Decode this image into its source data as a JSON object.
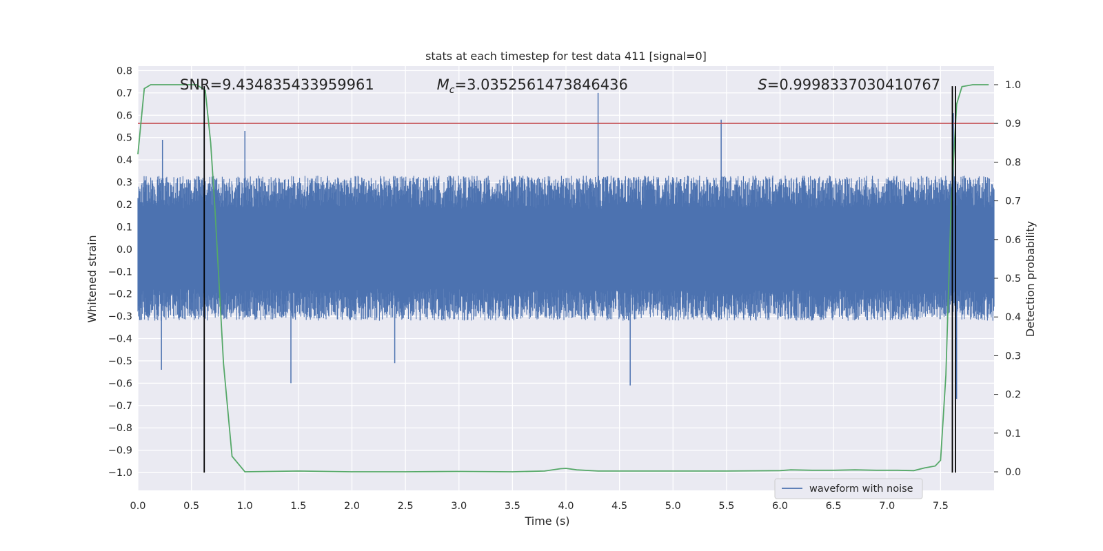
{
  "chart_data": {
    "type": "line",
    "title": "stats at each timestep for test data 411 [signal=0]",
    "xlabel": "Time (s)",
    "ylabel": "Whitened strain",
    "y2label": "Detection probability",
    "xlim": [
      0.0,
      8.0
    ],
    "ylim": [
      -1.08,
      0.82
    ],
    "y2lim": [
      -0.048,
      1.048
    ],
    "x_ticks": [
      "0.0",
      "0.5",
      "1.0",
      "1.5",
      "2.0",
      "2.5",
      "3.0",
      "3.5",
      "4.0",
      "4.5",
      "5.0",
      "5.5",
      "6.0",
      "6.5",
      "7.0",
      "7.5"
    ],
    "y_ticks": [
      "0.8",
      "0.7",
      "0.6",
      "0.5",
      "0.4",
      "0.3",
      "0.2",
      "0.1",
      "0.0",
      "−0.1",
      "−0.2",
      "−0.3",
      "−0.4",
      "−0.5",
      "−0.6",
      "−0.7",
      "−0.8",
      "−0.9",
      "−1.0"
    ],
    "y2_ticks": [
      "1.0",
      "0.9",
      "0.8",
      "0.7",
      "0.6",
      "0.5",
      "0.4",
      "0.3",
      "0.2",
      "0.1",
      "0.0"
    ],
    "grid": true,
    "legend_placement": "lower-right",
    "annotations": [
      {
        "text": "SNR=9.434835433959961",
        "x": 0.2,
        "y": 0.74
      },
      {
        "math": "M",
        "sub": "c",
        "text": "=3.0352561473846436",
        "x": 2.6,
        "y": 0.74
      },
      {
        "math": "S",
        "text": "=0.9998337030410767",
        "x": 5.6,
        "y": 0.74
      }
    ],
    "series": [
      {
        "name": "waveform with noise",
        "style": "noise-band",
        "axis": "left",
        "color": "#4c72b0",
        "x_range": [
          0.0,
          8.0
        ],
        "typical_envelope": [
          -0.32,
          0.33
        ],
        "peaks": [
          {
            "x": 4.3,
            "y": 0.7
          },
          {
            "x": 5.45,
            "y": 0.58
          },
          {
            "x": 1.0,
            "y": 0.53
          },
          {
            "x": 0.23,
            "y": 0.49
          },
          {
            "x": 7.62,
            "y": 0.61
          }
        ],
        "troughs": [
          {
            "x": 0.22,
            "y": -0.54
          },
          {
            "x": 1.43,
            "y": -0.6
          },
          {
            "x": 4.6,
            "y": -0.61
          },
          {
            "x": 7.65,
            "y": -0.67
          },
          {
            "x": 2.4,
            "y": -0.51
          }
        ]
      },
      {
        "style": "line",
        "axis": "right",
        "color": "#55a868",
        "x": [
          0.0,
          0.06,
          0.12,
          0.18,
          0.3,
          0.42,
          0.55,
          0.63,
          0.68,
          0.72,
          0.76,
          0.8,
          0.88,
          1.0,
          1.5,
          2.0,
          2.5,
          3.0,
          3.5,
          3.8,
          3.95,
          4.0,
          4.1,
          4.3,
          4.6,
          5.0,
          5.5,
          6.0,
          6.1,
          6.3,
          6.5,
          6.7,
          6.9,
          7.1,
          7.25,
          7.35,
          7.45,
          7.5,
          7.55,
          7.6,
          7.65,
          7.7,
          7.8,
          7.95
        ],
        "y": [
          0.82,
          0.99,
          1.0,
          1.0,
          1.0,
          1.0,
          1.0,
          0.985,
          0.85,
          0.68,
          0.48,
          0.28,
          0.04,
          0.0,
          0.002,
          0.0,
          0.0,
          0.001,
          0.0,
          0.002,
          0.008,
          0.009,
          0.005,
          0.002,
          0.002,
          0.002,
          0.002,
          0.003,
          0.005,
          0.004,
          0.004,
          0.005,
          0.004,
          0.004,
          0.003,
          0.01,
          0.015,
          0.03,
          0.25,
          0.7,
          0.95,
          0.995,
          1.0,
          1.0
        ]
      },
      {
        "style": "hline",
        "axis": "right",
        "color": "#c44e52",
        "y": 0.9
      },
      {
        "style": "vlines",
        "axis": "left",
        "color": "#000000",
        "lines": [
          {
            "x": 0.62,
            "ymin": -1.0,
            "ymax": 0.73
          },
          {
            "x": 7.61,
            "ymin": -1.0,
            "ymax": 0.73
          },
          {
            "x": 7.64,
            "ymin": -1.0,
            "ymax": 0.73
          }
        ]
      }
    ]
  }
}
